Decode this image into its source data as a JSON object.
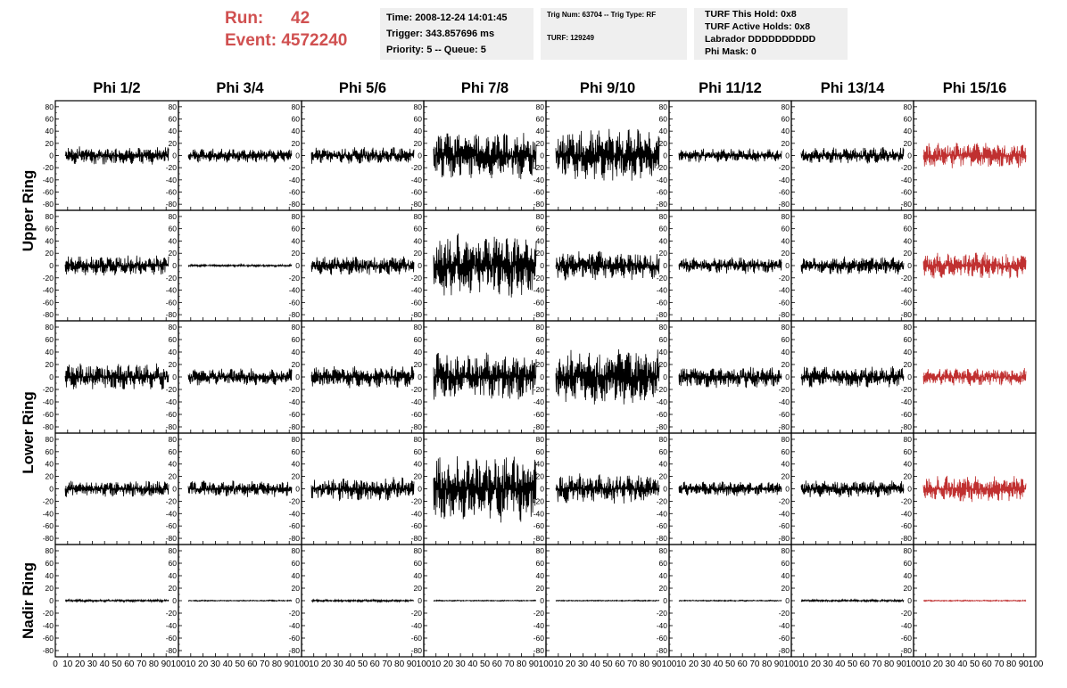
{
  "header": {
    "run_label": "Run:",
    "run_value": "42",
    "event_label": "Event:",
    "event_value": "4572240"
  },
  "info_box_1": {
    "time": "Time: 2008-12-24 14:01:45",
    "trigger": "Trigger: 343.857696 ms",
    "priority": "Priority: 5 -- Queue: 5"
  },
  "info_box_2": {
    "trig": "Trig Num: 63704 -- Trig Type: RF",
    "turf": "TURF: 129249"
  },
  "info_box_3": {
    "hold": "TURF This Hold: 0x8",
    "active": "TURF Active Holds: 0x8",
    "labrador": "Labrador DDDDDDDDDD",
    "phimask": "Phi Mask: 0"
  },
  "colors": {
    "title_red": "#d05050",
    "trace_default": "#000000",
    "trace_highlight": "#c03030",
    "info_bg": "#efefef"
  },
  "chart_data": {
    "type": "line",
    "columns": [
      "Phi 1/2",
      "Phi 3/4",
      "Phi 5/6",
      "Phi 7/8",
      "Phi 9/10",
      "Phi 11/12",
      "Phi 13/14",
      "Phi 15/16"
    ],
    "row_groups": [
      "Upper Ring",
      "Lower Ring",
      "Nadir Ring"
    ],
    "rows_per_group": [
      2,
      2,
      1
    ],
    "y_ticks": [
      80,
      60,
      40,
      20,
      0,
      -20,
      -40,
      -60,
      -80
    ],
    "ylim": [
      -90,
      90
    ],
    "x_ticks_first": [
      "0",
      "10",
      "20",
      "30",
      "40",
      "50",
      "60",
      "70",
      "80",
      "90",
      "100"
    ],
    "x_ticks_other": [
      "10",
      "20",
      "30",
      "40",
      "50",
      "60",
      "70",
      "80",
      "90",
      "100"
    ],
    "xlim": [
      0,
      100
    ],
    "trace_amplitude": [
      [
        15,
        12,
        14,
        40,
        45,
        12,
        14,
        22
      ],
      [
        17,
        2,
        16,
        55,
        25,
        14,
        15,
        22
      ],
      [
        22,
        14,
        18,
        40,
        45,
        18,
        18,
        15
      ],
      [
        14,
        14,
        20,
        55,
        25,
        12,
        14,
        22
      ],
      [
        2,
        1,
        2,
        1,
        1,
        1,
        2,
        1
      ]
    ],
    "highlight_column": "Phi 15/16",
    "grid": false
  }
}
